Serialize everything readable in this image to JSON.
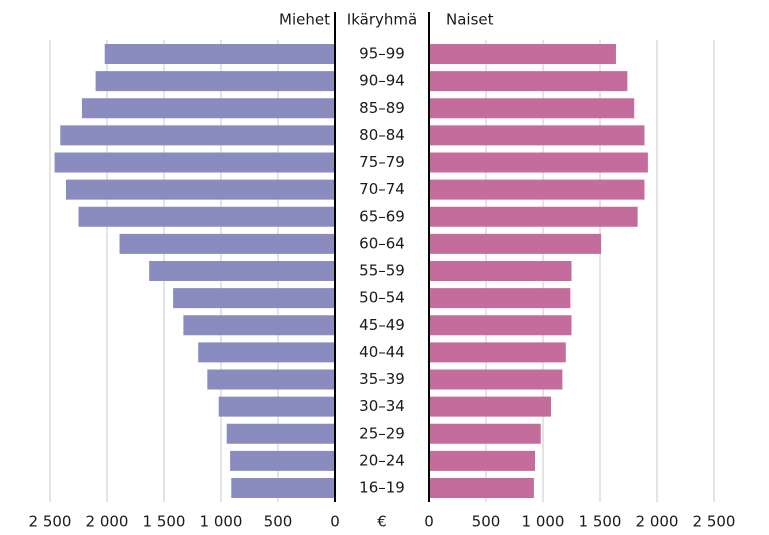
{
  "chart_data": {
    "type": "butterfly-bar",
    "left_header": "Miehet",
    "center_header": "Ikäryhmä",
    "right_header": "Naiset",
    "unit_label": "€",
    "categories": [
      "95–99",
      "90–94",
      "85–89",
      "80–84",
      "75–79",
      "70–74",
      "65–69",
      "60–64",
      "55–59",
      "50–54",
      "45–49",
      "40–44",
      "35–39",
      "30–34",
      "25–29",
      "20–24",
      "16–19"
    ],
    "series": [
      {
        "name": "Miehet",
        "color": "#8a8cbf",
        "side": "left",
        "values": [
          2020,
          2100,
          2220,
          2410,
          2460,
          2360,
          2250,
          1890,
          1630,
          1420,
          1330,
          1200,
          1120,
          1020,
          950,
          920,
          910
        ]
      },
      {
        "name": "Naiset",
        "color": "#c46c9c",
        "side": "right",
        "values": [
          1640,
          1740,
          1800,
          1890,
          1920,
          1890,
          1830,
          1510,
          1250,
          1240,
          1250,
          1200,
          1170,
          1070,
          980,
          930,
          920
        ]
      }
    ],
    "xlim": [
      0,
      2500
    ],
    "xticks": [
      0,
      500,
      {
        "value": 1000,
        "label": "1 000"
      },
      {
        "value": 1500,
        "label": "1 500"
      },
      {
        "value": 2000,
        "label": "2 000"
      },
      {
        "value": 2500,
        "label": "2 500"
      }
    ],
    "x2lim": [
      0,
      2500
    ],
    "x2ticks": [
      0,
      500,
      {
        "value": 1000,
        "label": "1 000"
      },
      {
        "value": 1500,
        "label": "1 500"
      },
      {
        "value": 2000,
        "label": "2 000"
      },
      {
        "value": 2500,
        "label": "2 500"
      }
    ],
    "grid": true
  }
}
